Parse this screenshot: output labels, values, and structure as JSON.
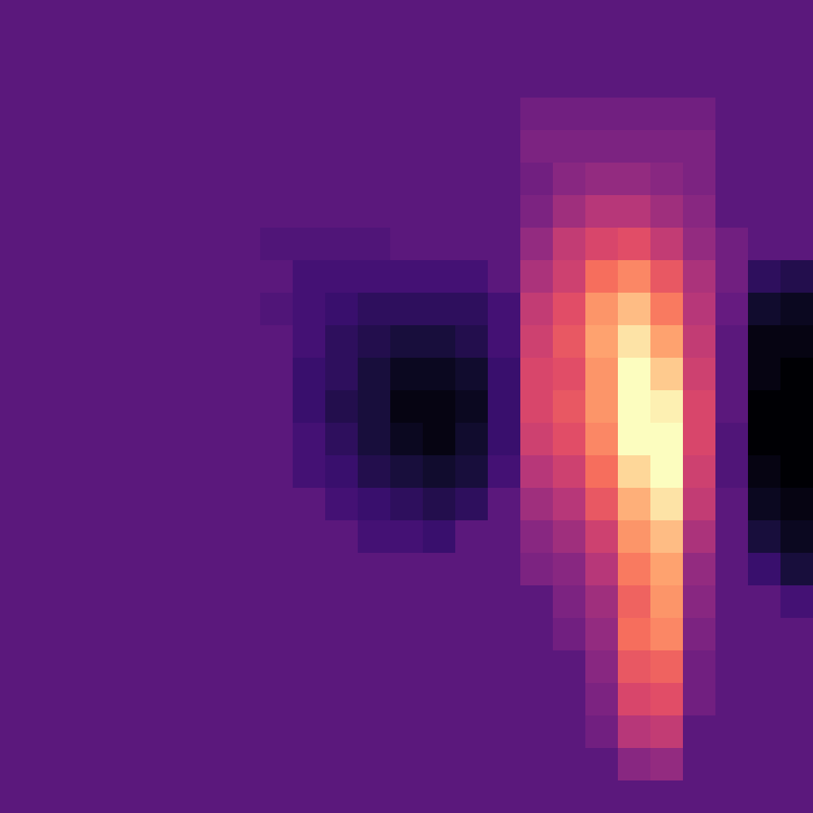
{
  "chart_data": {
    "type": "heatmap",
    "color": "magma",
    "tick_labels": false,
    "zlim": [
      -1,
      2.6
    ],
    "z": [
      [
        0,
        0,
        0,
        0,
        0,
        0,
        0,
        0,
        0,
        0,
        0,
        0,
        0,
        0,
        0,
        0,
        0,
        0,
        0,
        0,
        0,
        0,
        0,
        0,
        0
      ],
      [
        0,
        0,
        0,
        0,
        0,
        0,
        0,
        0,
        0,
        0,
        0,
        0,
        0,
        0,
        0,
        0,
        0,
        0,
        0,
        0,
        0,
        0,
        0,
        0,
        0
      ],
      [
        0,
        0,
        0,
        0,
        0,
        0,
        0,
        0,
        0,
        0,
        0,
        0,
        0,
        0,
        0,
        0,
        0,
        0,
        0,
        0,
        0,
        0,
        0,
        0,
        0
      ],
      [
        0,
        0,
        0,
        0,
        0,
        0,
        0,
        0,
        0,
        0,
        0,
        0,
        0,
        0,
        0,
        0,
        0.2,
        0.2,
        0.2,
        0.2,
        0.2,
        0.2,
        0,
        0,
        0
      ],
      [
        0,
        0,
        0,
        0,
        0,
        0,
        0,
        0,
        0,
        0,
        0,
        0,
        0,
        0,
        0,
        0,
        0.3,
        0.3,
        0.3,
        0.3,
        0.3,
        0.3,
        0,
        0,
        0
      ],
      [
        0,
        0,
        0,
        0,
        0,
        0,
        0,
        0,
        0,
        0,
        0,
        0,
        0,
        0,
        0,
        0,
        0.2,
        0.4,
        0.5,
        0.5,
        0.4,
        0.3,
        0,
        0,
        0
      ],
      [
        0,
        0,
        0,
        0,
        0,
        0,
        0,
        0,
        0,
        0,
        0,
        0,
        0,
        0,
        0,
        0,
        0.3,
        0.6,
        0.8,
        0.8,
        0.6,
        0.4,
        0,
        0,
        0
      ],
      [
        0,
        0,
        0,
        0,
        0,
        0,
        0,
        0,
        -0.1,
        -0.1,
        -0.1,
        -0.1,
        0,
        0,
        0,
        0,
        0.5,
        0.9,
        1.1,
        1.2,
        0.9,
        0.5,
        0.2,
        0,
        0
      ],
      [
        0,
        0,
        0,
        0,
        0,
        0,
        0,
        0,
        0,
        -0.2,
        -0.2,
        -0.2,
        -0.2,
        -0.2,
        -0.2,
        0,
        0.7,
        1.0,
        1.5,
        1.7,
        1.3,
        0.7,
        0.2,
        -0.4,
        -0.5
      ],
      [
        0,
        0,
        0,
        0,
        0,
        0,
        0,
        0,
        -0.1,
        -0.2,
        -0.3,
        -0.4,
        -0.4,
        -0.4,
        -0.4,
        -0.2,
        0.9,
        1.2,
        1.8,
        2.1,
        1.6,
        0.8,
        0.1,
        -0.7,
        -0.8
      ],
      [
        0,
        0,
        0,
        0,
        0,
        0,
        0,
        0,
        0,
        -0.2,
        -0.4,
        -0.5,
        -0.6,
        -0.6,
        -0.5,
        -0.2,
        1.0,
        1.3,
        1.9,
        2.4,
        1.9,
        0.9,
        0,
        -0.9,
        -0.9
      ],
      [
        0,
        0,
        0,
        0,
        0,
        0,
        0,
        0,
        0,
        -0.3,
        -0.4,
        -0.6,
        -0.8,
        -0.8,
        -0.7,
        -0.3,
        1.1,
        1.2,
        1.8,
        2.6,
        2.2,
        1.0,
        0,
        -0.9,
        -1.0
      ],
      [
        0,
        0,
        0,
        0,
        0,
        0,
        0,
        0,
        0,
        -0.3,
        -0.5,
        -0.6,
        -0.9,
        -0.9,
        -0.8,
        -0.3,
        1.1,
        1.3,
        1.8,
        2.8,
        2.5,
        1.1,
        0,
        -1.0,
        -1.0
      ],
      [
        0,
        0,
        0,
        0,
        0,
        0,
        0,
        0,
        0,
        -0.2,
        -0.4,
        -0.6,
        -0.8,
        -0.9,
        -0.7,
        -0.3,
        1.0,
        1.2,
        1.7,
        2.7,
        2.7,
        1.1,
        -0.1,
        -1.0,
        -1.0
      ],
      [
        0,
        0,
        0,
        0,
        0,
        0,
        0,
        0,
        0,
        -0.2,
        -0.3,
        -0.5,
        -0.6,
        -0.7,
        -0.6,
        -0.2,
        0.8,
        1.0,
        1.5,
        2.3,
        2.8,
        1.0,
        -0.1,
        -0.9,
        -1.0
      ],
      [
        0,
        0,
        0,
        0,
        0,
        0,
        0,
        0,
        0,
        0,
        -0.2,
        -0.3,
        -0.4,
        -0.5,
        -0.4,
        0,
        0.6,
        0.8,
        1.3,
        2.0,
        2.4,
        0.9,
        0,
        -0.8,
        -0.9
      ],
      [
        0,
        0,
        0,
        0,
        0,
        0,
        0,
        0,
        0,
        0,
        0,
        -0.2,
        -0.2,
        -0.3,
        0,
        0,
        0.4,
        0.6,
        1.0,
        1.8,
        2.1,
        0.7,
        0,
        -0.6,
        -0.8
      ],
      [
        0,
        0,
        0,
        0,
        0,
        0,
        0,
        0,
        0,
        0,
        0,
        0,
        0,
        0,
        0,
        0,
        0.3,
        0.4,
        0.8,
        1.6,
        1.9,
        0.5,
        0,
        -0.3,
        -0.6
      ],
      [
        0,
        0,
        0,
        0,
        0,
        0,
        0,
        0,
        0,
        0,
        0,
        0,
        0,
        0,
        0,
        0,
        0,
        0.3,
        0.6,
        1.4,
        1.8,
        0.4,
        0,
        0,
        -0.2
      ],
      [
        0,
        0,
        0,
        0,
        0,
        0,
        0,
        0,
        0,
        0,
        0,
        0,
        0,
        0,
        0,
        0,
        0,
        0.2,
        0.5,
        1.5,
        1.7,
        0.3,
        0,
        0,
        0
      ],
      [
        0,
        0,
        0,
        0,
        0,
        0,
        0,
        0,
        0,
        0,
        0,
        0,
        0,
        0,
        0,
        0,
        0,
        0,
        0.4,
        1.3,
        1.4,
        0.2,
        0,
        0,
        0
      ],
      [
        0,
        0,
        0,
        0,
        0,
        0,
        0,
        0,
        0,
        0,
        0,
        0,
        0,
        0,
        0,
        0,
        0,
        0,
        0.3,
        1.1,
        1.2,
        0.2,
        0,
        0,
        0
      ],
      [
        0,
        0,
        0,
        0,
        0,
        0,
        0,
        0,
        0,
        0,
        0,
        0,
        0,
        0,
        0,
        0,
        0,
        0,
        0.2,
        0.8,
        0.9,
        0,
        0,
        0,
        0
      ],
      [
        0,
        0,
        0,
        0,
        0,
        0,
        0,
        0,
        0,
        0,
        0,
        0,
        0,
        0,
        0,
        0,
        0,
        0,
        0,
        0.4,
        0.5,
        0,
        0,
        0,
        0
      ],
      [
        0,
        0,
        0,
        0,
        0,
        0,
        0,
        0,
        0,
        0,
        0,
        0,
        0,
        0,
        0,
        0,
        0,
        0,
        0,
        0,
        0,
        0,
        0,
        0,
        0
      ]
    ]
  }
}
